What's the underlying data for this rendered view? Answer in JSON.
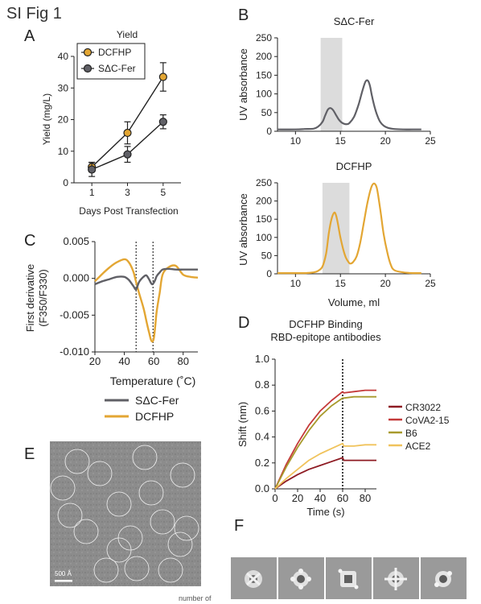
{
  "figure": {
    "title": "SI Fig 1",
    "panel_labels": [
      "A",
      "B",
      "C",
      "D",
      "E",
      "F"
    ],
    "scale_bar_label": "500 Å",
    "cropped_footnote": "number of"
  },
  "colors": {
    "dcfhp": "#e3a633",
    "sdc_fer": "#606066",
    "cr3022": "#8e1b23",
    "cova2_15": "#c43a3a",
    "b6": "#a89a2c",
    "ace2": "#f0c35c",
    "shade": "#dcdcdc"
  },
  "chart_data": [
    {
      "id": "A",
      "type": "line",
      "title": "Yield",
      "xlabel": "Days Post Transfection",
      "ylabel": "Yield (mg/L)",
      "x": [
        1,
        3,
        5
      ],
      "xticks": [
        "1",
        "3",
        "5"
      ],
      "xlim": [
        0,
        6
      ],
      "ylim": [
        0,
        40
      ],
      "yticks": [
        "0",
        "10",
        "20",
        "30",
        "40"
      ],
      "legend_position": "top-left",
      "series": [
        {
          "name": "DCFHP",
          "values": [
            5,
            15.8,
            33.5
          ],
          "err": [
            1.5,
            3.5,
            4.5
          ]
        },
        {
          "name": "SΔC-Fer",
          "values": [
            4.2,
            9,
            19.3
          ],
          "err": [
            2.2,
            2.5,
            2.2
          ]
        }
      ]
    },
    {
      "id": "B1",
      "type": "line",
      "title": "SΔC-Fer",
      "xlabel": "",
      "ylabel": "UV absorbance",
      "xlim": [
        8,
        25
      ],
      "ylim": [
        0,
        250
      ],
      "xticks": [
        "10",
        "15",
        "20",
        "25"
      ],
      "yticks": [
        "0",
        "50",
        "100",
        "150",
        "200",
        "250"
      ],
      "shaded_x": [
        12.8,
        15.2
      ],
      "x": [
        8,
        10,
        11,
        12,
        12.5,
        13,
        13.3,
        13.6,
        13.9,
        14.2,
        14.5,
        14.8,
        15.1,
        15.4,
        15.7,
        16,
        16.5,
        17,
        17.4,
        17.7,
        17.9,
        18.1,
        18.3,
        18.5,
        18.8,
        19.1,
        19.4,
        19.8,
        20.3,
        21,
        22,
        23,
        24
      ],
      "series": [
        {
          "name": "",
          "values": [
            5,
            5,
            6,
            7,
            12,
            25,
            42,
            58,
            62,
            56,
            44,
            32,
            24,
            20,
            19,
            22,
            38,
            70,
            105,
            128,
            136,
            134,
            120,
            95,
            65,
            42,
            26,
            15,
            9,
            6,
            5,
            5,
            5
          ]
        }
      ]
    },
    {
      "id": "B2",
      "type": "line",
      "title": "DCFHP",
      "xlabel": "Volume, ml",
      "ylabel": "UV absorbance",
      "xlim": [
        8,
        25
      ],
      "ylim": [
        0,
        250
      ],
      "xticks": [
        "10",
        "15",
        "20",
        "25"
      ],
      "yticks": [
        "0",
        "50",
        "100",
        "150",
        "200",
        "250"
      ],
      "shaded_x": [
        13,
        16
      ],
      "x": [
        8,
        11,
        12,
        12.5,
        13,
        13.4,
        13.7,
        14,
        14.3,
        14.5,
        14.7,
        15,
        15.3,
        15.6,
        15.9,
        16.1,
        16.4,
        16.8,
        17.2,
        17.6,
        18,
        18.4,
        18.7,
        19,
        19.2,
        19.5,
        19.8,
        20.2,
        20.6,
        21,
        22,
        23,
        24
      ],
      "series": [
        {
          "name": "",
          "values": [
            2,
            2,
            4,
            8,
            20,
            55,
            110,
            150,
            168,
            162,
            140,
            100,
            68,
            45,
            32,
            28,
            32,
            48,
            85,
            140,
            195,
            235,
            248,
            240,
            215,
            165,
            110,
            60,
            25,
            10,
            4,
            2,
            2
          ]
        }
      ]
    },
    {
      "id": "C",
      "type": "line",
      "title": "",
      "xlabel": "Temperature (˚C)",
      "ylabel": "First derivative (F350/F330)",
      "ylabel_lines": [
        "First derivative",
        "(F350/F330)"
      ],
      "xlim": [
        20,
        90
      ],
      "ylim": [
        -0.01,
        0.005
      ],
      "xticks": [
        "20",
        "40",
        "60",
        "80"
      ],
      "yticks": [
        "0.005",
        "0.000",
        "-0.005",
        "-0.010"
      ],
      "vlines": [
        48,
        59.5
      ],
      "legend_position": "bottom",
      "x": [
        20,
        25,
        30,
        35,
        40,
        43,
        46,
        48,
        50,
        53,
        55,
        57,
        58,
        59,
        60,
        61,
        62,
        64,
        66,
        70,
        75,
        80,
        85,
        90
      ],
      "series": [
        {
          "name": "SΔC-Fer",
          "values": [
            -0.0008,
            -0.0004,
            -0.0001,
            0.0002,
            0.0002,
            -0.0002,
            -0.001,
            -0.0015,
            -0.0005,
            0.0002,
            0.0004,
            -0.0002,
            -0.0006,
            -0.0008,
            -0.0006,
            -0.0002,
            0.0003,
            0.0008,
            0.0012,
            0.0013,
            0.0012,
            0.0012,
            0.0012,
            0.0012
          ]
        },
        {
          "name": "DCFHP",
          "values": [
            -0.0004,
            0.0006,
            0.0015,
            0.0022,
            0.0026,
            0.0022,
            0.001,
            -0.0005,
            -0.002,
            -0.004,
            -0.0058,
            -0.0075,
            -0.0083,
            -0.0086,
            -0.0082,
            -0.0065,
            -0.0045,
            -0.002,
            0.0005,
            0.0015,
            0.0017,
            0.0005,
            0.0002,
            0.0001
          ]
        }
      ]
    },
    {
      "id": "D",
      "type": "line",
      "title": "DCFHP Binding",
      "subtitle": "RBD-epitope antibodies",
      "xlabel": "Time (s)",
      "ylabel": "Shift (nm)",
      "xlim": [
        0,
        90
      ],
      "ylim": [
        0,
        1.0
      ],
      "xticks": [
        "0",
        "20",
        "40",
        "60",
        "80"
      ],
      "yticks": [
        "0.0",
        "0.2",
        "0.4",
        "0.6",
        "0.8",
        "1.0"
      ],
      "vlines": [
        60
      ],
      "legend_position": "right",
      "x": [
        0,
        10,
        20,
        30,
        40,
        50,
        60,
        61,
        70,
        80,
        90
      ],
      "series": [
        {
          "name": "CR3022",
          "values": [
            0,
            0.06,
            0.11,
            0.15,
            0.18,
            0.21,
            0.24,
            0.22,
            0.22,
            0.22,
            0.22
          ]
        },
        {
          "name": "CoVA2-15",
          "values": [
            0,
            0.19,
            0.35,
            0.49,
            0.6,
            0.68,
            0.75,
            0.74,
            0.75,
            0.76,
            0.76
          ]
        },
        {
          "name": "B6",
          "values": [
            0,
            0.17,
            0.32,
            0.45,
            0.56,
            0.64,
            0.7,
            0.7,
            0.71,
            0.71,
            0.71
          ]
        },
        {
          "name": "ACE2",
          "values": [
            0,
            0.08,
            0.15,
            0.22,
            0.27,
            0.31,
            0.35,
            0.33,
            0.33,
            0.34,
            0.34
          ]
        }
      ]
    }
  ]
}
